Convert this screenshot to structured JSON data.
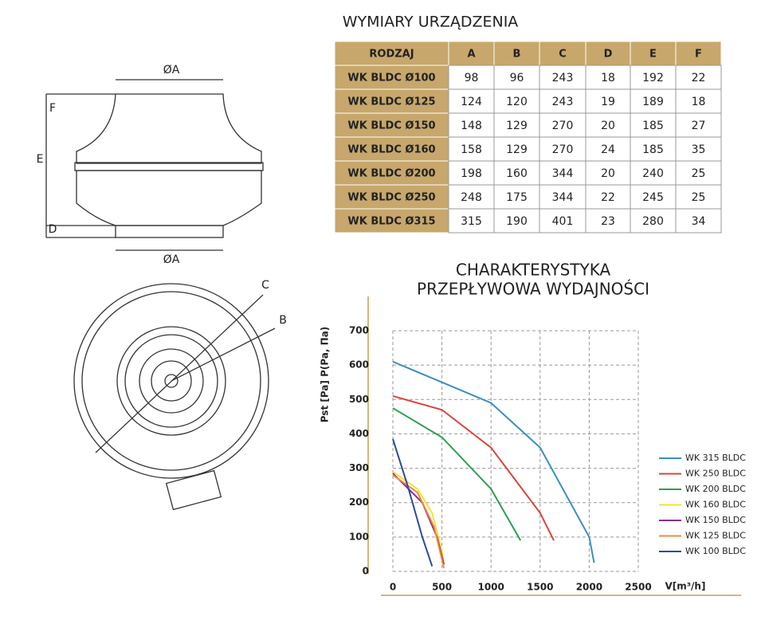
{
  "drawing": {
    "labels": {
      "a_top": "ØA",
      "a_bottom": "ØA",
      "f": "F",
      "e": "E",
      "d": "D",
      "c": "C",
      "b": "B"
    }
  },
  "table": {
    "title": "WYMIARY URZĄDZENIA",
    "header": [
      "RODZAJ",
      "A",
      "B",
      "C",
      "D",
      "E",
      "F"
    ],
    "rows": [
      [
        "WK BLDC Ø100",
        "98",
        "96",
        "243",
        "18",
        "192",
        "22"
      ],
      [
        "WK BLDC Ø125",
        "124",
        "120",
        "243",
        "19",
        "189",
        "18"
      ],
      [
        "WK BLDC Ø150",
        "148",
        "129",
        "270",
        "20",
        "185",
        "27"
      ],
      [
        "WK BLDC Ø160",
        "158",
        "129",
        "270",
        "24",
        "185",
        "35"
      ],
      [
        "WK BLDC Ø200",
        "198",
        "160",
        "344",
        "20",
        "240",
        "25"
      ],
      [
        "WK BLDC Ø250",
        "248",
        "175",
        "344",
        "22",
        "245",
        "25"
      ],
      [
        "WK BLDC Ø315",
        "315",
        "190",
        "401",
        "23",
        "280",
        "34"
      ]
    ]
  },
  "chart_data": {
    "type": "line",
    "title_lines": [
      "CHARAKTERYSTYKA",
      "PRZEPŁYWOWA WYDAJNOŚCI"
    ],
    "x_label": "V[m³/h]",
    "y_label": "Pst [Pa] P(Pa, Па)",
    "xlim": [
      0,
      2500
    ],
    "xticks": [
      0,
      500,
      1000,
      1500,
      2000,
      2500
    ],
    "ylim": [
      0,
      700
    ],
    "yticks": [
      0,
      100,
      200,
      300,
      400,
      500,
      600,
      700
    ],
    "grid": true,
    "series": [
      {
        "name": "WK 315 BLDC",
        "color": "#3a8fc4",
        "x": [
          0,
          500,
          1000,
          1500,
          2000,
          2050
        ],
        "y": [
          610,
          550,
          490,
          360,
          100,
          25
        ]
      },
      {
        "name": "WK 250 BLDC",
        "color": "#d9453c",
        "x": [
          0,
          500,
          1000,
          1500,
          1640
        ],
        "y": [
          510,
          470,
          360,
          170,
          90
        ]
      },
      {
        "name": "WK 200 BLDC",
        "color": "#2e9e4f",
        "x": [
          0,
          500,
          1000,
          1300
        ],
        "y": [
          475,
          390,
          240,
          90
        ]
      },
      {
        "name": "WK 160 BLDC",
        "color": "#f5e03a",
        "x": [
          0,
          250,
          400,
          500,
          520
        ],
        "y": [
          290,
          240,
          170,
          60,
          20
        ]
      },
      {
        "name": "WK 150 BLDC",
        "color": "#8b2e8e",
        "x": [
          0,
          300,
          450,
          520
        ],
        "y": [
          285,
          200,
          100,
          20
        ]
      },
      {
        "name": "WK 125 BLDC",
        "color": "#f08a3a",
        "x": [
          0,
          250,
          420,
          520
        ],
        "y": [
          280,
          230,
          130,
          10
        ]
      },
      {
        "name": "WK 100 BLDC",
        "color": "#2d4a9c",
        "x": [
          0,
          150,
          300,
          400
        ],
        "y": [
          385,
          250,
          100,
          15
        ]
      }
    ]
  }
}
